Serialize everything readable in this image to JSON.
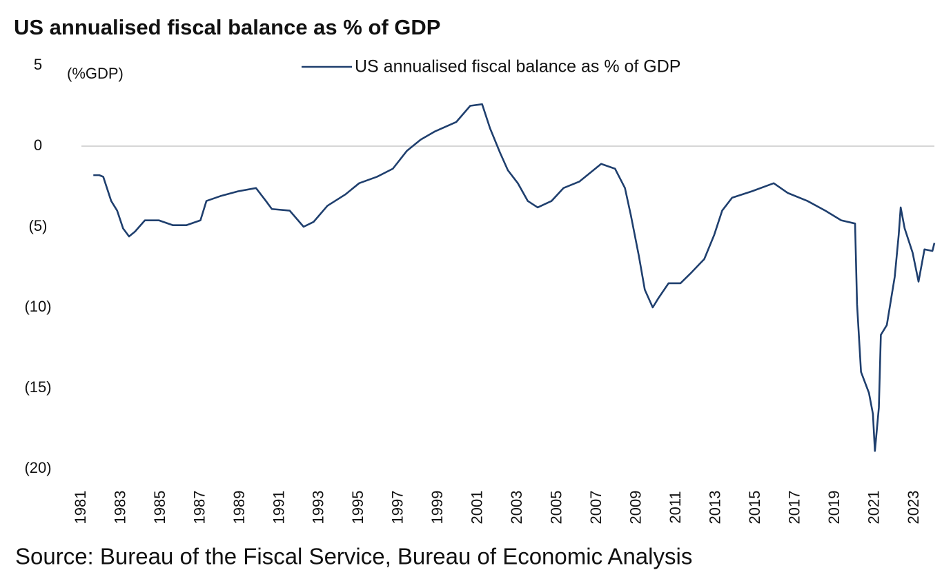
{
  "chart_data": {
    "type": "line",
    "title": "US annualised fiscal balance as % of GDP",
    "y_axis_label": "(%GDP)",
    "source": "Source: Bureau of the Fiscal Service, Bureau of Economic Analysis",
    "legend": "top",
    "x": [
      1981.6,
      1981.9,
      1982.1,
      1982.5,
      1982.8,
      1983.1,
      1983.4,
      1983.7,
      1984.2,
      1984.9,
      1985.6,
      1986.3,
      1987.0,
      1987.3,
      1988.0,
      1988.9,
      1989.8,
      1990.3,
      1990.6,
      1991.5,
      1992.2,
      1992.7,
      1993.4,
      1994.3,
      1995.0,
      1995.9,
      1996.7,
      1997.4,
      1998.1,
      1998.8,
      1999.9,
      2000.6,
      2001.2,
      2001.6,
      2002.1,
      2002.5,
      2003.0,
      2003.5,
      2004.0,
      2004.7,
      2005.3,
      2006.1,
      2006.8,
      2007.2,
      2007.9,
      2008.4,
      2008.7,
      2009.1,
      2009.4,
      2009.8,
      2010.1,
      2010.6,
      2011.2,
      2011.7,
      2012.4,
      2012.9,
      2013.3,
      2013.8,
      2014.8,
      2015.9,
      2016.6,
      2017.6,
      2018.5,
      2019.3,
      2020.0,
      2020.1,
      2020.3,
      2020.7,
      2020.9,
      2021.0,
      2021.2,
      2021.3,
      2021.6,
      2022.0,
      2022.2,
      2022.3,
      2022.5,
      2022.9,
      2023.2,
      2023.5,
      2023.9,
      2024.0
    ],
    "series": [
      {
        "name": "US annualised fiscal balance as % of GDP",
        "color": "#1f3f6e",
        "values": [
          -1.8,
          -1.8,
          -1.9,
          -3.4,
          -4.0,
          -5.1,
          -5.6,
          -5.3,
          -4.6,
          -4.6,
          -4.9,
          -4.9,
          -4.6,
          -3.4,
          -3.1,
          -2.8,
          -2.6,
          -3.4,
          -3.9,
          -4.0,
          -5.0,
          -4.7,
          -3.7,
          -3.0,
          -2.3,
          -1.9,
          -1.4,
          -0.3,
          0.4,
          0.9,
          1.5,
          2.5,
          2.6,
          1.1,
          -0.4,
          -1.5,
          -2.3,
          -3.4,
          -3.8,
          -3.4,
          -2.6,
          -2.2,
          -1.5,
          -1.1,
          -1.4,
          -2.6,
          -4.3,
          -6.8,
          -8.9,
          -10.0,
          -9.4,
          -8.5,
          -8.5,
          -7.9,
          -7.0,
          -5.5,
          -4.0,
          -3.2,
          -2.8,
          -2.3,
          -2.9,
          -3.4,
          -4.0,
          -4.6,
          -4.8,
          -9.8,
          -14.0,
          -15.3,
          -16.6,
          -18.9,
          -16.2,
          -11.7,
          -11.1,
          -8.1,
          -5.5,
          -3.8,
          -5.1,
          -6.6,
          -8.4,
          -6.4,
          -6.5,
          -6.0
        ]
      }
    ],
    "xlim": [
      1981,
      2024
    ],
    "xticks": [
      1981,
      1983,
      1985,
      1987,
      1989,
      1991,
      1993,
      1995,
      1997,
      1999,
      2001,
      2003,
      2005,
      2007,
      2009,
      2011,
      2013,
      2015,
      2017,
      2019,
      2021,
      2023
    ],
    "ylim": [
      -20,
      5
    ],
    "yticks": [
      5,
      0,
      {
        "value": -5,
        "label": "(5)"
      },
      {
        "value": -10,
        "label": "(10)"
      },
      {
        "value": -15,
        "label": "(15)"
      },
      {
        "value": -20,
        "label": "(20)"
      }
    ],
    "zero_line": true
  }
}
